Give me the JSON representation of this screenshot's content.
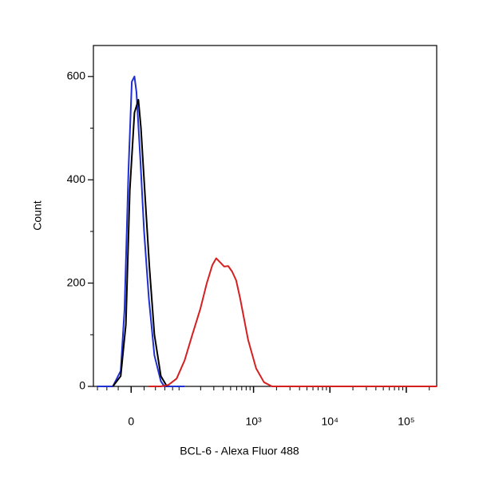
{
  "chart_data": {
    "type": "histogram-overlay",
    "xlabel": "BCL-6 - Alexa Fluor 488",
    "ylabel": "Count",
    "xscale": "arcsinh",
    "xlim": [
      -70,
      250000
    ],
    "ylim": [
      0,
      660
    ],
    "xticks": [
      0,
      {
        "value": 1000,
        "label": "10³"
      },
      {
        "value": 10000,
        "label": "10⁴"
      },
      {
        "value": 100000,
        "label": "10⁵"
      }
    ],
    "xminor": [
      -60,
      -40,
      -20,
      20,
      40,
      60,
      80,
      100,
      200,
      300,
      400,
      500,
      600,
      700,
      800,
      900,
      2000,
      3000,
      4000,
      5000,
      6000,
      7000,
      8000,
      9000,
      20000,
      30000,
      40000,
      50000,
      60000,
      70000,
      80000,
      90000,
      200000
    ],
    "yticks": [
      0,
      200,
      400,
      600
    ],
    "yminor": [
      100,
      300,
      500
    ],
    "series": [
      {
        "color": "#1f2fd0",
        "x": [
          -61,
          -29,
          -16,
          -10,
          -4,
          1,
          5,
          8,
          14,
          20,
          28,
          38,
          51,
          59,
          120
        ],
        "values": [
          0,
          0,
          30,
          150,
          420,
          590,
          600,
          570,
          440,
          300,
          170,
          60,
          10,
          0,
          0
        ]
      },
      {
        "color": "#000000",
        "x": [
          -29,
          -16,
          -8,
          -2,
          5,
          11,
          15,
          21,
          29,
          38,
          51,
          65
        ],
        "values": [
          0,
          20,
          120,
          380,
          530,
          555,
          500,
          380,
          230,
          100,
          20,
          0
        ]
      },
      {
        "color": "#d62020",
        "x": [
          28,
          51,
          69,
          92,
          120,
          154,
          198,
          242,
          287,
          323,
          365,
          412,
          465,
          525,
          592,
          668,
          849,
          1080,
          1370,
          1745,
          250000
        ],
        "values": [
          0,
          0,
          3,
          15,
          50,
          100,
          150,
          200,
          235,
          248,
          240,
          232,
          233,
          222,
          205,
          170,
          90,
          35,
          8,
          0,
          0
        ]
      }
    ]
  }
}
